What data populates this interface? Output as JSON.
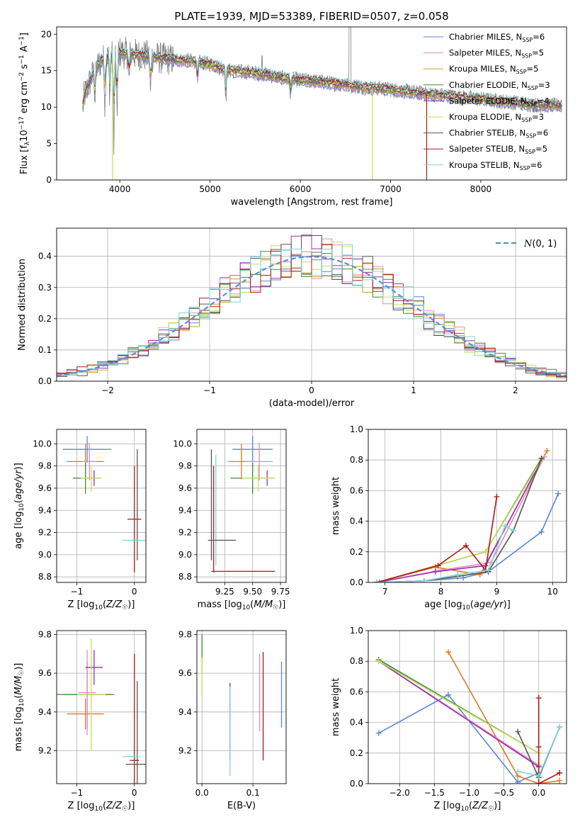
{
  "figure_title": "PLATE=1939, MJD=53389, FIBERID=0507, z=0.058",
  "colors": {
    "chabrier_miles": "#5a86d6",
    "salpeter_miles": "#e58ac0",
    "kroupa_miles": "#c8a020",
    "chabrier_elodie": "#3f8a3a",
    "salpeter_elodie": "#9a2fb0",
    "kroupa_elodie": "#c4e05a",
    "chabrier_stelib": "#555555",
    "salpeter_stelib": "#b01818",
    "kroupa_stelib": "#7fd6d6",
    "orange": "#e07a28",
    "normal_curve": "#5b8fd6",
    "data_spectrum": "#808080"
  },
  "chart_data": [
    {
      "id": "spectrum",
      "type": "line",
      "title": "PLATE=1939, MJD=53389, FIBERID=0507, z=0.058",
      "xlabel": "wavelength [Angstrom, rest frame]",
      "ylabel": "Flux [f_λ 10^-17 erg cm^-2 s^-1 A^-1]",
      "xlim": [
        3300,
        8950
      ],
      "ylim": [
        0,
        21
      ],
      "xticks": [
        4000,
        5000,
        6000,
        7000,
        8000
      ],
      "yticks": [
        0,
        5,
        10,
        15,
        20
      ],
      "legend_position": "top-right",
      "legend": [
        {
          "label": "Chabrier MILES, N",
          "sub": "SSP",
          "suffix": "=6",
          "color": "#5a86d6"
        },
        {
          "label": "Salpeter MILES, N",
          "sub": "SSP",
          "suffix": "=5",
          "color": "#e58ac0"
        },
        {
          "label": "Kroupa MILES, N",
          "sub": "SSP",
          "suffix": "=5",
          "color": "#c8a020"
        },
        {
          "label": "Chabrier ELODIE, N",
          "sub": "SSP",
          "suffix": "=3",
          "color": "#3f8a3a"
        },
        {
          "label": "Salpeter ELODIE, N",
          "sub": "SSP",
          "suffix": "=4",
          "color": "#9a2fb0"
        },
        {
          "label": "Kroupa ELODIE, N",
          "sub": "SSP",
          "suffix": "=3",
          "color": "#c4e05a"
        },
        {
          "label": "Chabrier STELIB, N",
          "sub": "SSP",
          "suffix": "=6",
          "color": "#555555"
        },
        {
          "label": "Salpeter STELIB, N",
          "sub": "SSP",
          "suffix": "=5",
          "color": "#b01818"
        },
        {
          "label": "Kroupa STELIB, N",
          "sub": "SSP",
          "suffix": "=6",
          "color": "#7fd6d6"
        }
      ],
      "continuum": [
        [
          3600,
          11.3
        ],
        [
          3700,
          14.5
        ],
        [
          3800,
          16.5
        ],
        [
          3900,
          17.0
        ],
        [
          4000,
          17.5
        ],
        [
          4200,
          17.2
        ],
        [
          4400,
          16.8
        ],
        [
          4600,
          16.5
        ],
        [
          4800,
          16.3
        ],
        [
          5000,
          15.9
        ],
        [
          5200,
          15.0
        ],
        [
          5400,
          14.8
        ],
        [
          5600,
          14.5
        ],
        [
          5800,
          14.0
        ],
        [
          6000,
          13.7
        ],
        [
          6200,
          13.5
        ],
        [
          6400,
          13.2
        ],
        [
          6600,
          12.9
        ],
        [
          6800,
          12.6
        ],
        [
          7000,
          12.4
        ],
        [
          7200,
          12.1
        ],
        [
          7400,
          11.8
        ],
        [
          7600,
          11.6
        ],
        [
          7800,
          11.3
        ],
        [
          8000,
          11.1
        ],
        [
          8200,
          10.8
        ],
        [
          8400,
          10.6
        ],
        [
          8600,
          10.3
        ],
        [
          8800,
          10.2
        ]
      ]
    },
    {
      "id": "residual_hist",
      "type": "bar",
      "xlabel": "(data-model)/error",
      "ylabel": "Normed distribution",
      "xlim": [
        -2.5,
        2.5
      ],
      "ylim": [
        0,
        0.49
      ],
      "xticks": [
        -2,
        -1,
        0,
        1,
        2
      ],
      "yticks": [
        0.0,
        0.1,
        0.2,
        0.3,
        0.4
      ],
      "grid": true,
      "legend_position": "top-right",
      "legend": [
        {
          "label": "N(0,1)",
          "color": "#5b8fd6",
          "style": "dashed"
        }
      ],
      "bin_width": 0.1,
      "bin_start": -2.5
    },
    {
      "id": "age_vs_Z",
      "type": "errorbar",
      "xlabel": "Z [log10(Z/Z☉)]",
      "ylabel": "age [log10(age/yr)]",
      "xlim": [
        -1.35,
        0.2
      ],
      "ylim": [
        8.75,
        10.13
      ],
      "xticks": [
        -1,
        0
      ],
      "yticks": [
        8.8,
        9.0,
        9.2,
        9.4,
        9.6,
        9.8,
        10.0
      ],
      "grid": true,
      "points": [
        {
          "x": -0.82,
          "xerr": 0.42,
          "y": 9.95,
          "yerr": 0.12,
          "color": "#5a86d6"
        },
        {
          "x": -0.85,
          "xerr": 0.32,
          "y": 9.84,
          "yerr": 0.16,
          "color": "#e07a28"
        },
        {
          "x": -0.78,
          "xerr": 0.12,
          "y": 9.84,
          "yerr": 0.17,
          "color": "#e58ac0"
        },
        {
          "x": -0.85,
          "xerr": 0.22,
          "y": 9.69,
          "yerr": 0.14,
          "color": "#3f8a3a"
        },
        {
          "x": -0.7,
          "xerr": 0.12,
          "y": 9.69,
          "yerr": 0.07,
          "color": "#9a2fb0"
        },
        {
          "x": -0.75,
          "xerr": 0.18,
          "y": 9.69,
          "yerr": 0.12,
          "color": "#c4e05a"
        },
        {
          "x": 0.05,
          "xerr": 0.0,
          "y": 9.45,
          "yerr": 0.5,
          "color": "#555555"
        },
        {
          "x": 0.0,
          "xerr": 0.12,
          "y": 9.32,
          "yerr": 0.48,
          "color": "#b01818"
        },
        {
          "x": 0.0,
          "xerr": 0.2,
          "y": 9.13,
          "yerr": 0.0,
          "color": "#7fd6d6"
        }
      ]
    },
    {
      "id": "age_vs_mass",
      "type": "errorbar",
      "xlabel": "mass [log10(M/M☉)]",
      "ylabel": "",
      "xlim": [
        9.0,
        9.8
      ],
      "ylim": [
        8.75,
        10.13
      ],
      "xticks": [
        9.25,
        9.5,
        9.75
      ],
      "yticks": [
        8.8,
        9.0,
        9.2,
        9.4,
        9.6,
        9.8,
        10.0
      ],
      "grid": true,
      "points": [
        {
          "x": 9.5,
          "xerr": 0.18,
          "y": 9.95,
          "yerr": 0.12,
          "color": "#5a86d6"
        },
        {
          "x": 9.4,
          "xerr": 0.12,
          "y": 9.84,
          "yerr": 0.16,
          "color": "#e07a28"
        },
        {
          "x": 9.56,
          "xerr": 0.12,
          "y": 9.84,
          "yerr": 0.17,
          "color": "#e58ac0"
        },
        {
          "x": 9.5,
          "xerr": 0.2,
          "y": 9.69,
          "yerr": 0.14,
          "color": "#3f8a3a"
        },
        {
          "x": 9.63,
          "xerr": 0.0,
          "y": 9.69,
          "yerr": 0.07,
          "color": "#9a2fb0"
        },
        {
          "x": 9.55,
          "xerr": 0.15,
          "y": 9.69,
          "yerr": 0.12,
          "color": "#c4e05a"
        },
        {
          "x": 9.13,
          "xerr": 0.0,
          "y": 9.45,
          "yerr": 0.5,
          "color": "#555555"
        },
        {
          "x": 9.15,
          "xerr": 0.0,
          "y": 9.32,
          "yerr": 0.48,
          "color": "#b01818"
        },
        {
          "x": 9.17,
          "xerr": 0.0,
          "y": 9.4,
          "yerr": 0.5,
          "color": "#7fd6d6"
        }
      ],
      "hlines": [
        {
          "x0": 9.13,
          "x1": 9.7,
          "y": 8.85,
          "color": "#b01818"
        },
        {
          "x0": 9.1,
          "x1": 9.35,
          "y": 9.13,
          "color": "#7fd6d6"
        },
        {
          "x0": 9.1,
          "x1": 9.35,
          "y": 9.13,
          "color": "#555555"
        }
      ]
    },
    {
      "id": "weight_vs_age",
      "type": "line",
      "xlabel": "age [log10(age/yr)]",
      "ylabel": "mass weight",
      "xlim": [
        6.7,
        10.25
      ],
      "ylim": [
        0,
        1.0
      ],
      "xticks": [
        7,
        8,
        9,
        10
      ],
      "yticks": [
        0.0,
        0.2,
        0.4,
        0.6,
        0.8,
        1.0
      ],
      "grid": true,
      "series": [
        {
          "color": "#5a86d6",
          "x": [
            6.9,
            7.7,
            8.4,
            8.85,
            9.8,
            10.1
          ],
          "y": [
            0.0,
            0.01,
            0.03,
            0.07,
            0.33,
            0.58
          ]
        },
        {
          "color": "#e07a28",
          "x": [
            6.85,
            7.9,
            8.7,
            9.9
          ],
          "y": [
            0.0,
            0.1,
            0.05,
            0.86
          ]
        },
        {
          "color": "#e58ac0",
          "x": [
            6.85,
            8.0,
            8.9,
            9.85
          ],
          "y": [
            0.0,
            0.08,
            0.13,
            0.82
          ]
        },
        {
          "color": "#3f8a3a",
          "x": [
            6.85,
            8.8,
            9.8
          ],
          "y": [
            0.0,
            0.2,
            0.81
          ]
        },
        {
          "color": "#9a2fb0",
          "x": [
            6.85,
            7.9,
            8.8,
            9.8
          ],
          "y": [
            0.0,
            0.07,
            0.11,
            0.8
          ]
        },
        {
          "color": "#c4e05a",
          "x": [
            6.85,
            8.8,
            9.8
          ],
          "y": [
            0.0,
            0.2,
            0.8
          ]
        },
        {
          "color": "#555555",
          "x": [
            6.85,
            7.7,
            8.3,
            8.85,
            9.3,
            9.8
          ],
          "y": [
            0.0,
            0.01,
            0.04,
            0.07,
            0.34,
            0.81
          ]
        },
        {
          "color": "#b01818",
          "x": [
            6.85,
            7.95,
            8.45,
            8.8,
            9.0
          ],
          "y": [
            0.0,
            0.11,
            0.24,
            0.08,
            0.56
          ]
        },
        {
          "color": "#7fd6d6",
          "x": [
            6.85,
            7.7,
            8.3,
            8.85,
            9.15,
            9.3
          ],
          "y": [
            0.0,
            0.01,
            0.05,
            0.08,
            0.37,
            0.34
          ]
        }
      ]
    },
    {
      "id": "mass_vs_Z",
      "type": "errorbar",
      "xlabel": "Z [log10(Z/Z☉)]",
      "ylabel": "mass [log10(M/M☉)]",
      "xlim": [
        -1.35,
        0.2
      ],
      "ylim": [
        9.03,
        9.82
      ],
      "xticks": [
        -1,
        0
      ],
      "yticks": [
        9.2,
        9.4,
        9.6,
        9.8
      ],
      "grid": true,
      "points": [
        {
          "x": -0.82,
          "xerr": 0.42,
          "y": 9.49,
          "yerr": 0.17,
          "color": "#5a86d6"
        },
        {
          "x": -0.85,
          "xerr": 0.32,
          "y": 9.39,
          "yerr": 0.08,
          "color": "#e07a28"
        },
        {
          "x": -0.82,
          "xerr": 0.15,
          "y": 9.5,
          "yerr": 0.22,
          "color": "#e58ac0"
        },
        {
          "x": -0.85,
          "xerr": 0.5,
          "y": 9.49,
          "yerr": 0.0,
          "color": "#3f8a3a"
        },
        {
          "x": -0.7,
          "xerr": 0.15,
          "y": 9.63,
          "yerr": 0.09,
          "color": "#9a2fb0"
        },
        {
          "x": -0.75,
          "xerr": 0.25,
          "y": 9.49,
          "yerr": 0.29,
          "color": "#c4e05a"
        },
        {
          "x": 0.05,
          "xerr": 0.2,
          "y": 9.13,
          "yerr": 0.43,
          "color": "#555555"
        },
        {
          "x": 0.0,
          "xerr": 0.08,
          "y": 9.15,
          "yerr": 0.55,
          "color": "#b01818"
        },
        {
          "x": -0.05,
          "xerr": 0.15,
          "y": 9.17,
          "yerr": 0.0,
          "color": "#7fd6d6"
        }
      ]
    },
    {
      "id": "mass_vs_ebv",
      "type": "errorbar",
      "xlabel": "E(B-V)",
      "ylabel": "",
      "xlim": [
        -0.01,
        0.165
      ],
      "ylim": [
        9.03,
        9.82
      ],
      "xticks": [
        0.0,
        0.1
      ],
      "yticks": [
        9.2,
        9.4,
        9.6,
        9.8
      ],
      "grid": true,
      "points": [
        {
          "x": 0.0,
          "y": 9.7,
          "yerr": 0.1,
          "color": "#3f8a3a"
        },
        {
          "x": 0.0,
          "y": 9.58,
          "yerr": 0.1,
          "color": "#c4e05a"
        },
        {
          "x": 0.055,
          "y": 9.35,
          "yerr": 0.2,
          "color": "#555555"
        },
        {
          "x": 0.055,
          "y": 9.3,
          "yerr": 0.23,
          "color": "#7fd6d6"
        },
        {
          "x": 0.113,
          "y": 9.5,
          "yerr": 0.2,
          "color": "#e58ac0"
        },
        {
          "x": 0.12,
          "y": 9.43,
          "yerr": 0.28,
          "color": "#b01818"
        },
        {
          "x": 0.156,
          "y": 9.49,
          "yerr": 0.17,
          "color": "#5a86d6"
        }
      ]
    },
    {
      "id": "weight_vs_Z",
      "type": "line",
      "xlabel": "Z [log10(Z/Z☉)]",
      "ylabel": "mass weight",
      "xlim": [
        -2.45,
        0.4
      ],
      "ylim": [
        0,
        1.0
      ],
      "xticks": [
        -2.0,
        -1.5,
        -1.0,
        -0.5,
        0.0
      ],
      "yticks": [
        0.0,
        0.2,
        0.4,
        0.6,
        0.8,
        1.0
      ],
      "grid": true,
      "series": [
        {
          "color": "#5a86d6",
          "x": [
            -2.3,
            -1.3,
            -0.3,
            0.0
          ],
          "y": [
            0.33,
            0.58,
            0.01,
            0.07
          ]
        },
        {
          "color": "#e07a28",
          "x": [
            -1.3,
            -0.3,
            0.0,
            0.3
          ],
          "y": [
            0.86,
            0.05,
            0.0,
            0.02
          ]
        },
        {
          "color": "#e58ac0",
          "x": [
            -2.3,
            0.0
          ],
          "y": [
            0.8,
            0.12
          ]
        },
        {
          "color": "#3f8a3a",
          "x": [
            -2.3,
            0.0
          ],
          "y": [
            0.81,
            0.2
          ]
        },
        {
          "color": "#9a2fb0",
          "x": [
            -2.3,
            0.0
          ],
          "y": [
            0.8,
            0.11
          ]
        },
        {
          "color": "#c4e05a",
          "x": [
            -2.3,
            0.0
          ],
          "y": [
            0.8,
            0.2
          ]
        },
        {
          "color": "#555555",
          "x": [
            -0.3,
            0.0,
            0.3
          ],
          "y": [
            0.34,
            0.04,
            0.37
          ]
        },
        {
          "color": "#b01818",
          "x": [
            0.0,
            0.0,
            0.0,
            0.3
          ],
          "y": [
            0.56,
            0.24,
            0.0,
            0.07
          ]
        },
        {
          "color": "#7fd6d6",
          "x": [
            -0.3,
            0.0,
            0.3
          ],
          "y": [
            0.08,
            0.05,
            0.37
          ]
        }
      ]
    }
  ]
}
